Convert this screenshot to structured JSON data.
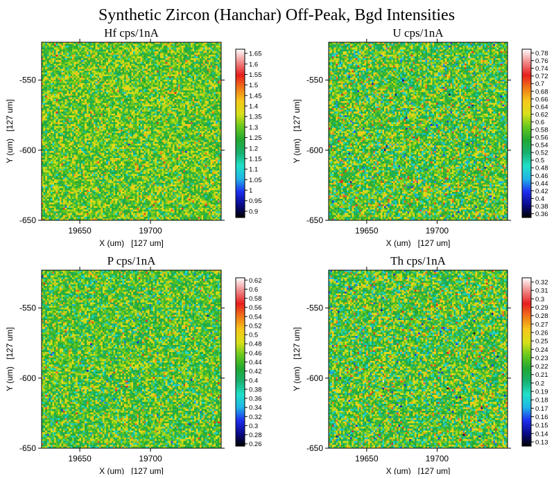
{
  "page_title": "Synthetic Zircon (Hanchar) Off-Peak, Bgd Intensities",
  "colors": {
    "colormap": [
      "#000000",
      "#0a0a8c",
      "#1e2ff0",
      "#1fb5e6",
      "#20e0c8",
      "#18b070",
      "#22a832",
      "#66c81e",
      "#d8e01a",
      "#f6c81a",
      "#f07818",
      "#e81e1e",
      "#f08a8a",
      "#ffffff"
    ],
    "background": "#ffffff",
    "axis": "#000000"
  },
  "chart_data": [
    {
      "type": "heatmap",
      "title": "Hf cps/1nA",
      "xlabel": "X (um)   [127 um]",
      "ylabel": "Y (um)   [127 um]",
      "xlim": [
        19623,
        19750
      ],
      "ylim": [
        -650,
        -523
      ],
      "x_ticks": [
        19650,
        19700
      ],
      "y_ticks": [
        -550,
        -600,
        -650
      ],
      "grid_size": 100,
      "typical_value": 1.29,
      "noise": 0.08,
      "colorbar": {
        "min": 0.87,
        "max": 1.67,
        "ticks": [
          "1.65",
          "1.6",
          "1.55",
          "1.5",
          "1.45",
          "1.4",
          "1.35",
          "1.3",
          "1.25",
          "1.2",
          "1.15",
          "1.1",
          "1.05",
          "1",
          "0.95",
          "0.9"
        ]
      }
    },
    {
      "type": "heatmap",
      "title": "U cps/1nA",
      "xlabel": "X (um)   [127 um]",
      "ylabel": "Y (um)   [127 um]",
      "xlim": [
        19623,
        19750
      ],
      "ylim": [
        -650,
        -523
      ],
      "x_ticks": [
        19650,
        19700
      ],
      "y_ticks": [
        -550,
        -600,
        -650
      ],
      "grid_size": 100,
      "typical_value": 0.57,
      "noise": 0.055,
      "colorbar": {
        "min": 0.35,
        "max": 0.79,
        "ticks": [
          "0.78",
          "0.76",
          "0.74",
          "0.72",
          "0.7",
          "0.68",
          "0.66",
          "0.64",
          "0.62",
          "0.6",
          "0.58",
          "0.56",
          "0.54",
          "0.52",
          "0.5",
          "0.48",
          "0.46",
          "0.44",
          "0.42",
          "0.4",
          "0.38",
          "0.36"
        ]
      }
    },
    {
      "type": "heatmap",
      "title": "P cps/1nA",
      "xlabel": "X (um)   [127 um]",
      "ylabel": "Y (um)   [127 um]",
      "xlim": [
        19623,
        19750
      ],
      "ylim": [
        -650,
        -523
      ],
      "x_ticks": [
        19650,
        19700
      ],
      "y_ticks": [
        -550,
        -600,
        -650
      ],
      "grid_size": 100,
      "typical_value": 0.44,
      "noise": 0.04,
      "colorbar": {
        "min": 0.255,
        "max": 0.625,
        "ticks": [
          "0.62",
          "0.6",
          "0.58",
          "0.56",
          "0.54",
          "0.52",
          "0.5",
          "0.48",
          "0.46",
          "0.44",
          "0.42",
          "0.4",
          "0.38",
          "0.36",
          "0.34",
          "0.32",
          "0.3",
          "0.28",
          "0.26"
        ]
      }
    },
    {
      "type": "heatmap",
      "title": "Th cps/1nA",
      "xlabel": "X (um)   [127 um]",
      "ylabel": "Y (um)   [127 um]",
      "xlim": [
        19623,
        19750
      ],
      "ylim": [
        -650,
        -523
      ],
      "x_ticks": [
        19650,
        19700
      ],
      "y_ticks": [
        -550,
        -600,
        -650
      ],
      "grid_size": 100,
      "typical_value": 0.225,
      "noise": 0.025,
      "colorbar": {
        "min": 0.125,
        "max": 0.325,
        "ticks": [
          "0.32",
          "0.31",
          "0.3",
          "0.29",
          "0.28",
          "0.27",
          "0.26",
          "0.25",
          "0.24",
          "0.23",
          "0.22",
          "0.21",
          "0.2",
          "0.19",
          "0.18",
          "0.17",
          "0.16",
          "0.15",
          "0.14",
          "0.13"
        ]
      }
    }
  ]
}
